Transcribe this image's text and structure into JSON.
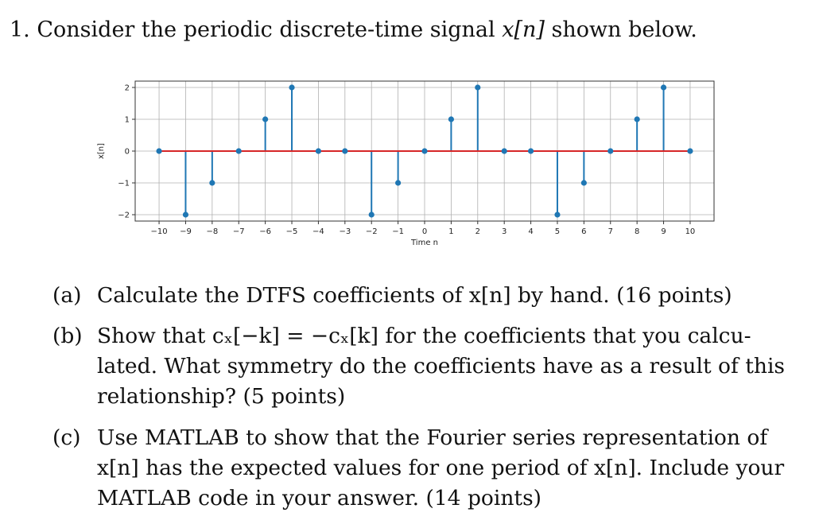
{
  "question": {
    "number": "1.",
    "text_before": "Consider the periodic discrete-time signal",
    "signal": "x[n]",
    "text_after": "shown below."
  },
  "chart_data": {
    "type": "stem",
    "xlabel": "Time n",
    "ylabel": "x[n]",
    "xlim": [
      -10.9,
      10.9
    ],
    "ylim": [
      -2.2,
      2.2
    ],
    "x_ticks": [
      -10,
      -9,
      -8,
      -7,
      -6,
      -5,
      -4,
      -3,
      -2,
      -1,
      0,
      1,
      2,
      3,
      4,
      5,
      6,
      7,
      8,
      9,
      10
    ],
    "y_ticks": [
      -2,
      -1,
      0,
      1,
      2
    ],
    "grid": true,
    "baseline": 0,
    "x": [
      -10,
      -9,
      -8,
      -7,
      -6,
      -5,
      -4,
      -3,
      -2,
      -1,
      0,
      1,
      2,
      3,
      4,
      5,
      6,
      7,
      8,
      9,
      10
    ],
    "y": [
      0,
      -2,
      -1,
      0,
      1,
      2,
      0,
      0,
      -2,
      -1,
      0,
      1,
      2,
      0,
      0,
      -2,
      -1,
      0,
      1,
      2,
      0
    ],
    "colors": {
      "stem": "#1f77b4",
      "baseline": "#d62728",
      "grid": "#b0b0b0"
    }
  },
  "parts": [
    {
      "label": "(a)",
      "lines": [
        "Calculate the DTFS coefficients of x[n] by hand. (16 points)"
      ]
    },
    {
      "label": "(b)",
      "lines": [
        "Show that cₓ[−k] = −cₓ[k] for the coefficients that you calcu-",
        "lated. What symmetry do the coefficients have as a result of this",
        "relationship? (5 points)"
      ]
    },
    {
      "label": "(c)",
      "lines": [
        "Use MATLAB to show that the Fourier series representation of",
        "x[n] has the expected values for one period of x[n]. Include your",
        "MATLAB code in your answer. (14 points)"
      ]
    }
  ]
}
